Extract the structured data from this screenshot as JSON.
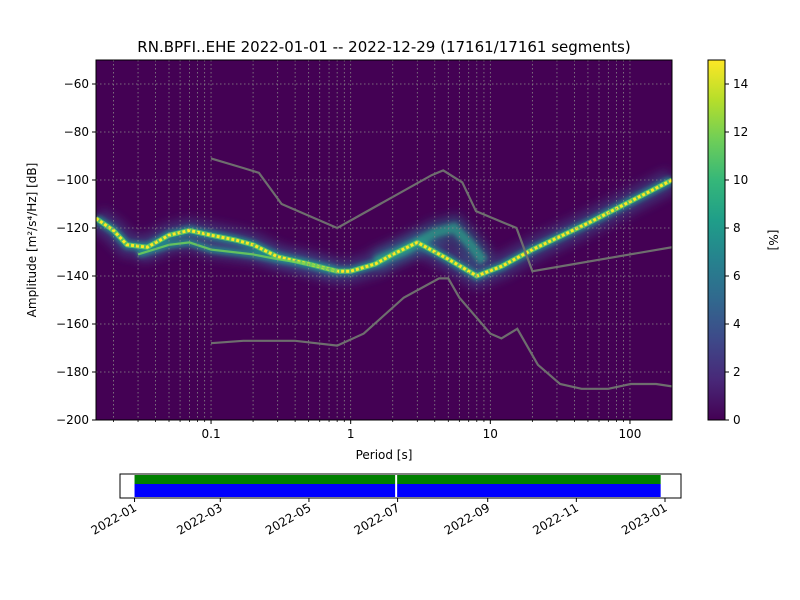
{
  "chart_data": [
    {
      "type": "heatmap",
      "title": "RN.BPFI..EHE   2022-01-01 -- 2022-12-29  (17161/17161 segments)",
      "xlabel": "Period [s]",
      "ylabel": "Amplitude [m²/s⁴/Hz] [dB]",
      "x_scale": "log",
      "xlim": [
        0.015,
        200
      ],
      "ylim": [
        -200,
        -50
      ],
      "x_tick_labels": [
        "0.1",
        "1",
        "10",
        "100"
      ],
      "y_tick_labels": [
        "−60",
        "−80",
        "−100",
        "−120",
        "−140",
        "−160",
        "−180",
        "−200"
      ],
      "grid": true,
      "colorbar": {
        "label": "[%]",
        "min": 0,
        "max": 15,
        "tick_labels": [
          "0",
          "2",
          "4",
          "6",
          "8",
          "10",
          "12",
          "14"
        ],
        "colormap": "viridis"
      },
      "mode_curve": [
        {
          "x": 0.015,
          "y": -116
        },
        {
          "x": 0.02,
          "y": -121
        },
        {
          "x": 0.025,
          "y": -127
        },
        {
          "x": 0.035,
          "y": -128
        },
        {
          "x": 0.05,
          "y": -123
        },
        {
          "x": 0.07,
          "y": -121
        },
        {
          "x": 0.1,
          "y": -123
        },
        {
          "x": 0.15,
          "y": -125
        },
        {
          "x": 0.2,
          "y": -127
        },
        {
          "x": 0.3,
          "y": -132
        },
        {
          "x": 0.5,
          "y": -135
        },
        {
          "x": 0.8,
          "y": -138
        },
        {
          "x": 1.0,
          "y": -138
        },
        {
          "x": 1.5,
          "y": -135
        },
        {
          "x": 2.0,
          "y": -131
        },
        {
          "x": 3.0,
          "y": -126
        },
        {
          "x": 5.0,
          "y": -133
        },
        {
          "x": 8.0,
          "y": -140
        },
        {
          "x": 12,
          "y": -136
        },
        {
          "x": 20,
          "y": -129
        },
        {
          "x": 50,
          "y": -118
        },
        {
          "x": 100,
          "y": -109
        },
        {
          "x": 200,
          "y": -100
        }
      ],
      "secondary_curve": [
        {
          "x": 0.03,
          "y": -131
        },
        {
          "x": 0.05,
          "y": -127
        },
        {
          "x": 0.07,
          "y": -126
        },
        {
          "x": 0.1,
          "y": -129
        },
        {
          "x": 0.2,
          "y": -131
        },
        {
          "x": 0.3,
          "y": -133
        },
        {
          "x": 0.5,
          "y": -135
        },
        {
          "x": 0.8,
          "y": -138
        }
      ],
      "upper_hump_curve": [
        {
          "x": 1.5,
          "y": -134
        },
        {
          "x": 2.5,
          "y": -129
        },
        {
          "x": 4.0,
          "y": -122
        },
        {
          "x": 5.5,
          "y": -120
        },
        {
          "x": 7.0,
          "y": -126
        },
        {
          "x": 9.0,
          "y": -134
        }
      ],
      "model_series": [
        {
          "values": [
            {
              "x": 0.1,
              "y": -91
            },
            {
              "x": 0.17,
              "y": -95
            },
            {
              "x": 0.22,
              "y": -97
            },
            {
              "x": 0.32,
              "y": -110
            },
            {
              "x": 0.8,
              "y": -120
            },
            {
              "x": 3.8,
              "y": -98
            },
            {
              "x": 4.6,
              "y": -96
            },
            {
              "x": 6.3,
              "y": -101
            },
            {
              "x": 7.9,
              "y": -113
            },
            {
              "x": 15.4,
              "y": -120
            },
            {
              "x": 20,
              "y": -138
            },
            {
              "x": 200,
              "y": -128
            }
          ]
        },
        {
          "values": [
            {
              "x": 0.1,
              "y": -168
            },
            {
              "x": 0.17,
              "y": -167
            },
            {
              "x": 0.4,
              "y": -167
            },
            {
              "x": 0.8,
              "y": -169
            },
            {
              "x": 1.24,
              "y": -164
            },
            {
              "x": 2.4,
              "y": -149
            },
            {
              "x": 4.3,
              "y": -141
            },
            {
              "x": 5.0,
              "y": -141
            },
            {
              "x": 6.0,
              "y": -149
            },
            {
              "x": 10,
              "y": -164
            },
            {
              "x": 12,
              "y": -166
            },
            {
              "x": 15.6,
              "y": -162
            },
            {
              "x": 21.9,
              "y": -177
            },
            {
              "x": 31.6,
              "y": -185
            },
            {
              "x": 45,
              "y": -187
            },
            {
              "x": 70,
              "y": -187
            },
            {
              "x": 101,
              "y": -185
            },
            {
              "x": 154,
              "y": -185
            },
            {
              "x": 200,
              "y": -186
            }
          ]
        }
      ]
    },
    {
      "type": "bar",
      "x_tick_labels": [
        "2022-01",
        "2022-03",
        "2022-05",
        "2022-07",
        "2022-09",
        "2022-11",
        "2023-01"
      ],
      "xlim": [
        "2021-12-22",
        "2023-01-12"
      ],
      "series": [
        {
          "color": "#008000",
          "start": "2022-01-01",
          "end": "2022-12-29"
        },
        {
          "color": "#0000ff",
          "start": "2022-01-01",
          "end": "2022-12-29"
        }
      ],
      "gap_date": "2022-06-30"
    }
  ],
  "colors": {
    "model_line": "#6e6e6e",
    "grid_line": "#888888",
    "background": "#440154"
  }
}
